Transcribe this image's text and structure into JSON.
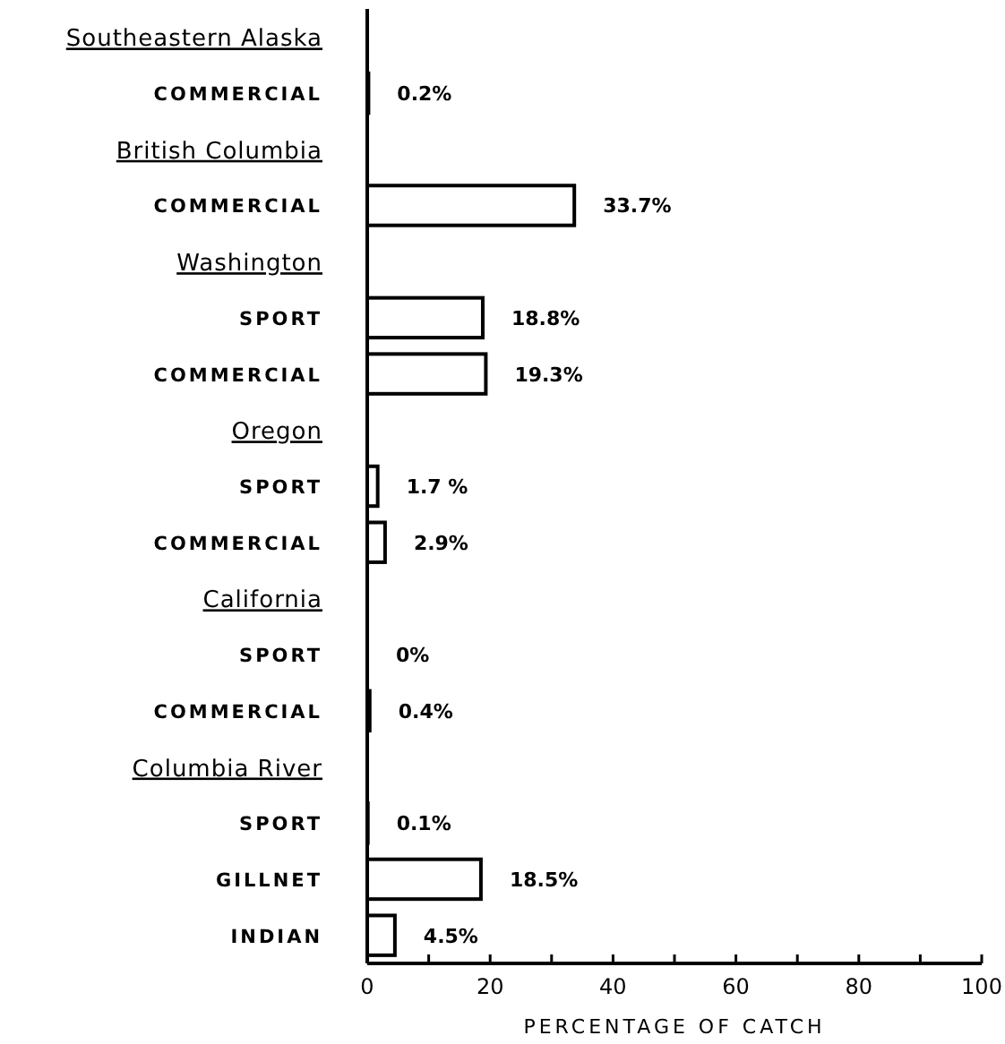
{
  "chart_data": {
    "type": "bar",
    "orientation": "horizontal",
    "xlabel": "PERCENTAGE OF CATCH",
    "categories": [
      "Southeastern Alaska",
      "COMMERCIAL",
      "British Columbia",
      "COMMERCIAL",
      "Washington",
      "SPORT",
      "COMMERCIAL",
      "Oregon",
      "SPORT",
      "COMMERCIAL",
      "California",
      "SPORT",
      "COMMERCIAL",
      "Columbia River",
      "SPORT",
      "GILLNET",
      "INDIAN"
    ],
    "values": [
      null,
      0.2,
      null,
      33.7,
      null,
      18.8,
      19.3,
      null,
      1.7,
      2.9,
      null,
      0,
      0.4,
      null,
      0.1,
      18.5,
      4.5
    ],
    "value_labels": [
      null,
      "0.2%",
      null,
      "33.7%",
      null,
      "18.8%",
      "19.3%",
      null,
      "1.7 %",
      "2.9%",
      null,
      "0%",
      "0.4%",
      null,
      "0.1%",
      "18.5%",
      "4.5%"
    ],
    "color": "#ffffff",
    "xlim": [
      0,
      100
    ],
    "xticks": [
      0,
      {
        "value": 10,
        "label": null
      },
      20,
      {
        "value": 30,
        "label": null
      },
      40,
      {
        "value": 50,
        "label": null
      },
      60,
      {
        "value": 70,
        "label": null
      },
      80,
      {
        "value": 90,
        "label": null
      },
      100
    ],
    "grid": false
  }
}
